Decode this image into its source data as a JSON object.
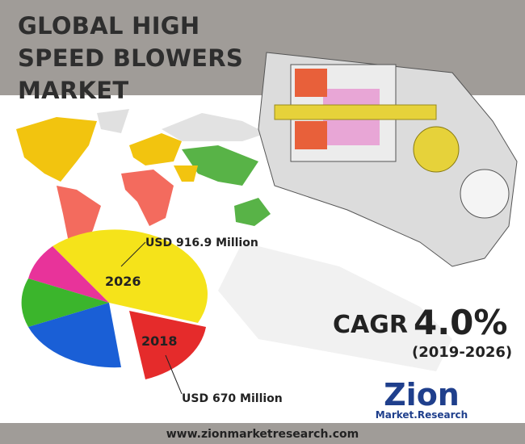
{
  "header": {
    "title": "GLOBAL HIGH SPEED BLOWERS MARKET"
  },
  "pie_labels": {
    "upper_value": "USD 916.9 Million",
    "upper_year": "2026",
    "lower_year": "2018",
    "lower_value": "USD 670 Million"
  },
  "cagr": {
    "label": "CAGR",
    "value": "4.0%",
    "period": "(2019-2026)"
  },
  "logo": {
    "name": "Zion",
    "tagline": "Market.Research"
  },
  "footer": {
    "url": "www.zionmarketresearch.com"
  }
}
